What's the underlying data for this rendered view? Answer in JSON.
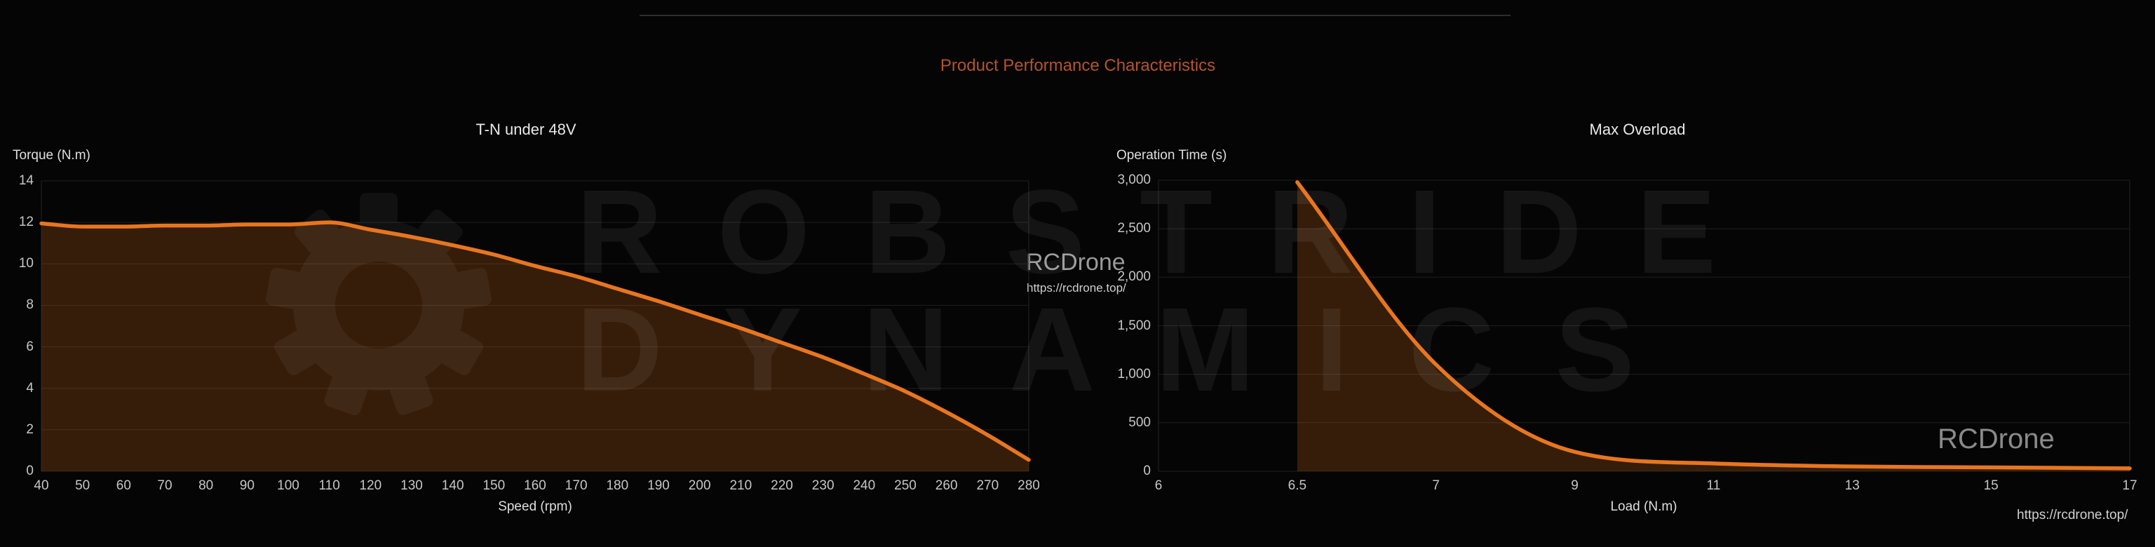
{
  "page": {
    "title": "Product Performance Characteristics",
    "colors": {
      "background": "#050505",
      "accent_title": "#b35330",
      "line_orange": "#e8761f",
      "area_fill": "rgba(232,118,31,0.22)",
      "grid_line": "#1e1e1e",
      "plot_border": "#222222",
      "tick_text": "#c6c6c6",
      "watermark_text": "rgba(255,255,255,0.062)"
    },
    "watermark": {
      "brand_line1": "ROBSTRIDE",
      "brand_line2": "DYNAMICS",
      "gear_icon": "gear-icon"
    },
    "overlays": {
      "mid_brand": "RCDrone",
      "mid_url": "https://rcdrone.top/",
      "bottom_brand": "RCDrone",
      "bottom_url": "https://rcdrone.top/"
    }
  },
  "chart_data": [
    {
      "type": "area",
      "title": "T-N under 48V",
      "xlabel": "Speed (rpm)",
      "ylabel": "Torque (N.m)",
      "x": [
        40,
        50,
        60,
        70,
        80,
        90,
        100,
        110,
        120,
        130,
        140,
        150,
        160,
        170,
        180,
        190,
        200,
        210,
        220,
        230,
        240,
        250,
        260,
        270,
        280
      ],
      "values": [
        11.95,
        11.8,
        11.8,
        11.85,
        11.85,
        11.9,
        11.9,
        12.0,
        11.65,
        11.3,
        10.9,
        10.45,
        9.9,
        9.4,
        8.8,
        8.2,
        7.55,
        6.9,
        6.2,
        5.5,
        4.7,
        3.85,
        2.85,
        1.75,
        0.55
      ],
      "ylim": [
        0,
        14
      ],
      "xlim": [
        40,
        280
      ],
      "y_ticks": [
        0,
        2,
        4,
        6,
        8,
        10,
        12,
        14
      ],
      "y_tick_labels": [
        "0",
        "2",
        "4",
        "6",
        "8",
        "10",
        "12",
        "14"
      ],
      "grid": "horizontal",
      "legend": "none",
      "smooth": true,
      "line_color": "#e8761f",
      "fill_color": "rgba(232,118,31,0.22)"
    },
    {
      "type": "area",
      "title": "Max Overload",
      "xlabel": "Load (N.m)",
      "ylabel": "Operation Time (s)",
      "categories": [
        "6",
        "6.5",
        "7",
        "9",
        "11",
        "13",
        "15",
        "17"
      ],
      "values": [
        null,
        2980,
        1100,
        200,
        80,
        50,
        40,
        30
      ],
      "ylim": [
        0,
        3000
      ],
      "y_ticks": [
        0,
        500,
        1000,
        1500,
        2000,
        2500,
        3000
      ],
      "y_tick_labels": [
        "0",
        "500",
        "1,000",
        "1,500",
        "2,000",
        "2,500",
        "3,000"
      ],
      "grid": "horizontal",
      "legend": "none",
      "smooth": true,
      "line_color": "#e8761f",
      "fill_color": "rgba(232,118,31,0.22)"
    }
  ]
}
